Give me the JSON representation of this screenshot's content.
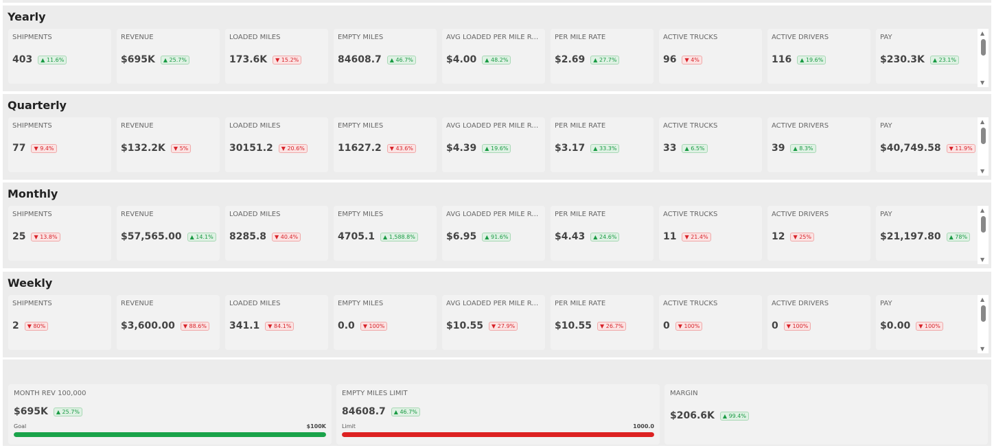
{
  "colors": {
    "up": "#1a9b44",
    "down": "#d8232a",
    "goal_bar": "#1aa34a",
    "limit_bar": "#dd2222"
  },
  "labels": [
    "SHIPMENTS",
    "REVENUE",
    "LOADED MILES",
    "EMPTY MILES",
    "AVG LOADED PER MILE RATE",
    "PER MILE RATE",
    "ACTIVE TRUCKS",
    "ACTIVE DRIVERS",
    "PAY"
  ],
  "sections": [
    {
      "title": "Yearly",
      "metrics": [
        {
          "value": "403",
          "change": "11.6%",
          "dir": "up"
        },
        {
          "value": "$695K",
          "change": "25.7%",
          "dir": "up"
        },
        {
          "value": "173.6K",
          "change": "15.2%",
          "dir": "down"
        },
        {
          "value": "84608.7",
          "change": "46.7%",
          "dir": "up"
        },
        {
          "value": "$4.00",
          "change": "48.2%",
          "dir": "up"
        },
        {
          "value": "$2.69",
          "change": "27.7%",
          "dir": "up"
        },
        {
          "value": "96",
          "change": "4%",
          "dir": "down"
        },
        {
          "value": "116",
          "change": "19.6%",
          "dir": "up"
        },
        {
          "value": "$230.3K",
          "change": "23.1%",
          "dir": "up"
        }
      ]
    },
    {
      "title": "Quarterly",
      "metrics": [
        {
          "value": "77",
          "change": "9.4%",
          "dir": "down"
        },
        {
          "value": "$132.2K",
          "change": "5%",
          "dir": "down"
        },
        {
          "value": "30151.2",
          "change": "20.6%",
          "dir": "down"
        },
        {
          "value": "11627.2",
          "change": "43.6%",
          "dir": "down"
        },
        {
          "value": "$4.39",
          "change": "19.6%",
          "dir": "up"
        },
        {
          "value": "$3.17",
          "change": "33.3%",
          "dir": "up"
        },
        {
          "value": "33",
          "change": "6.5%",
          "dir": "up"
        },
        {
          "value": "39",
          "change": "8.3%",
          "dir": "up"
        },
        {
          "value": "$40,749.58",
          "change": "11.9%",
          "dir": "down"
        }
      ]
    },
    {
      "title": "Monthly",
      "metrics": [
        {
          "value": "25",
          "change": "13.8%",
          "dir": "down"
        },
        {
          "value": "$57,565.00",
          "change": "14.1%",
          "dir": "up"
        },
        {
          "value": "8285.8",
          "change": "40.4%",
          "dir": "down"
        },
        {
          "value": "4705.1",
          "change": "1,588.8%",
          "dir": "up"
        },
        {
          "value": "$6.95",
          "change": "91.6%",
          "dir": "up"
        },
        {
          "value": "$4.43",
          "change": "24.6%",
          "dir": "up"
        },
        {
          "value": "11",
          "change": "21.4%",
          "dir": "down"
        },
        {
          "value": "12",
          "change": "25%",
          "dir": "down"
        },
        {
          "value": "$21,197.80",
          "change": "78%",
          "dir": "up"
        }
      ]
    },
    {
      "title": "Weekly",
      "metrics": [
        {
          "value": "2",
          "change": "80%",
          "dir": "down"
        },
        {
          "value": "$3,600.00",
          "change": "88.6%",
          "dir": "down"
        },
        {
          "value": "341.1",
          "change": "84.1%",
          "dir": "down"
        },
        {
          "value": "0.0",
          "change": "100%",
          "dir": "down"
        },
        {
          "value": "$10.55",
          "change": "27.9%",
          "dir": "down"
        },
        {
          "value": "$10.55",
          "change": "26.7%",
          "dir": "down"
        },
        {
          "value": "0",
          "change": "100%",
          "dir": "down"
        },
        {
          "value": "0",
          "change": "100%",
          "dir": "down"
        },
        {
          "value": "$0.00",
          "change": "100%",
          "dir": "down"
        }
      ]
    }
  ],
  "goals": [
    {
      "label": "MONTH REV 100,000",
      "value": "$695K",
      "change": "25.7%",
      "dir": "up",
      "bar_left": "Goal",
      "bar_right": "$100K",
      "progress": 1.0,
      "color": "#1aa34a"
    },
    {
      "label": "EMPTY MILES LIMIT",
      "value": "84608.7",
      "change": "46.7%",
      "dir": "up",
      "bar_left": "Limit",
      "bar_right": "1000.0",
      "progress": 1.0,
      "color": "#dd2222"
    },
    {
      "label": "MARGIN",
      "value": "$206.6K",
      "change": "99.4%",
      "dir": "up"
    }
  ]
}
